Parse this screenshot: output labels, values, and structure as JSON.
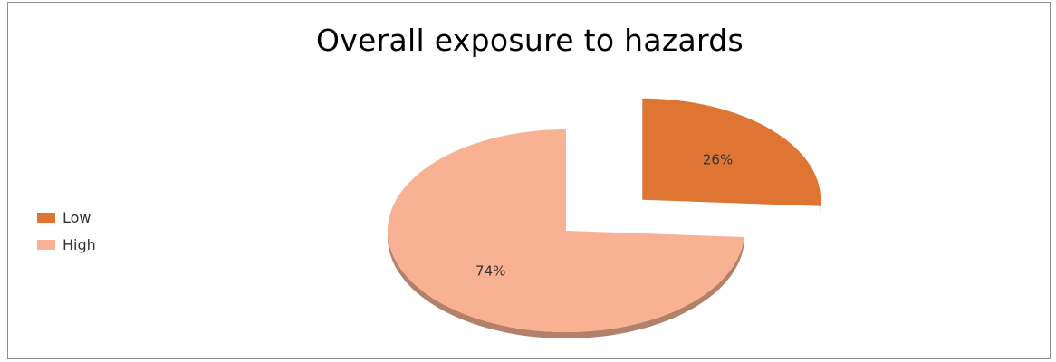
{
  "chart_data": {
    "type": "pie",
    "title": "Overall exposure to hazards",
    "legend_position": "left",
    "slices": [
      {
        "name": "Low",
        "value": 26,
        "label": "26%",
        "color": "#DF7533",
        "exploded": true
      },
      {
        "name": "High",
        "value": 74,
        "label": "74%",
        "color": "#F8B293",
        "exploded": false
      }
    ]
  }
}
